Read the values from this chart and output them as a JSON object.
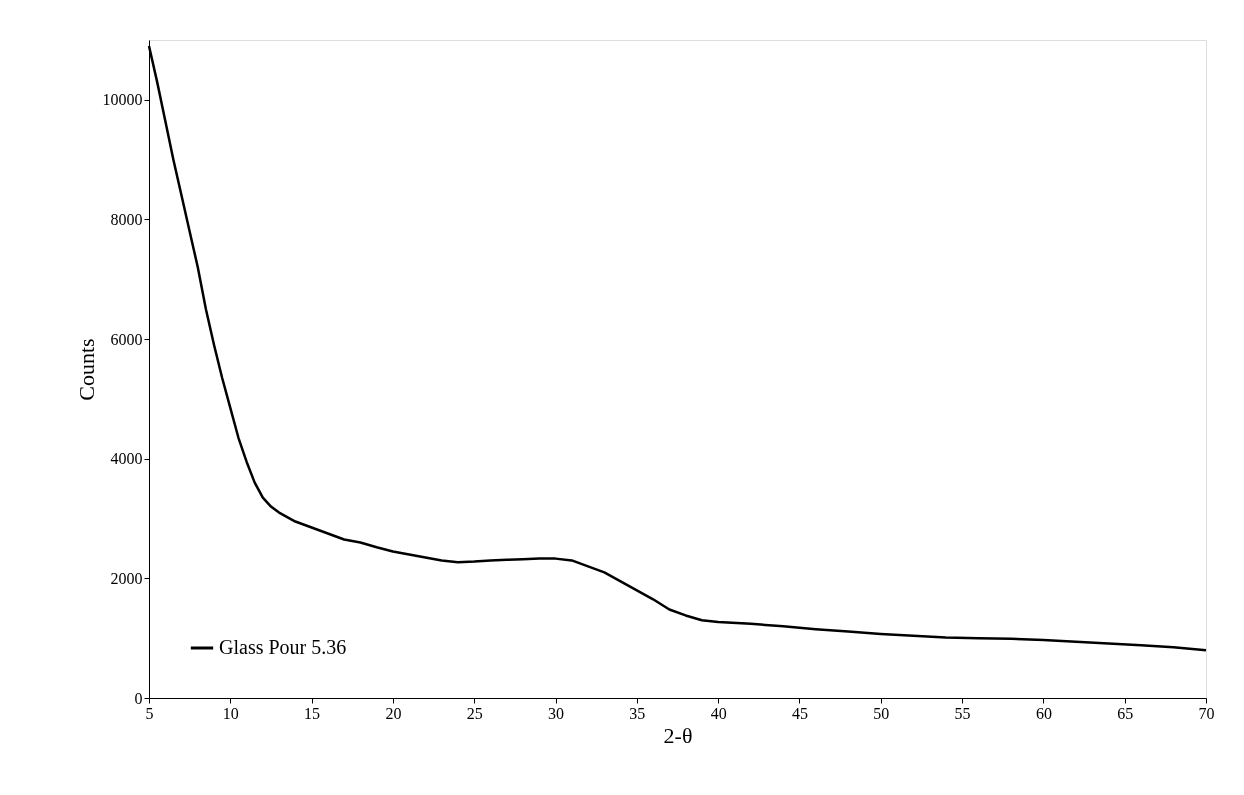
{
  "chart_data": {
    "type": "line",
    "xlabel": "2-θ",
    "ylabel": "Counts",
    "xlim": [
      5,
      70
    ],
    "xticks": [
      5,
      10,
      15,
      20,
      25,
      30,
      35,
      40,
      45,
      50,
      55,
      60,
      65,
      70
    ],
    "ylim": [
      0,
      11000
    ],
    "yticks": [
      0,
      2000,
      4000,
      6000,
      8000,
      10000
    ],
    "grid": false,
    "legend": "bottom left",
    "marker": "none",
    "line_style": "solid",
    "series": [
      {
        "name": "Glass Pour 5.36",
        "color": "#000000",
        "x": [
          5,
          5.5,
          6,
          6.5,
          7,
          7.5,
          8,
          8.5,
          9,
          9.5,
          10,
          10.5,
          11,
          11.5,
          12,
          12.5,
          13,
          14,
          15,
          16,
          17,
          18,
          19,
          20,
          21,
          22,
          23,
          24,
          25,
          26,
          27,
          28,
          29,
          30,
          31,
          32,
          33,
          34,
          35,
          36,
          37,
          38,
          39,
          40,
          42,
          44,
          46,
          48,
          50,
          52,
          54,
          56,
          58,
          60,
          62,
          64,
          66,
          68,
          70
        ],
        "values": [
          10900,
          10300,
          9650,
          9000,
          8400,
          7800,
          7200,
          6500,
          5900,
          5350,
          4850,
          4350,
          3950,
          3600,
          3350,
          3200,
          3100,
          2950,
          2850,
          2750,
          2650,
          2600,
          2520,
          2450,
          2400,
          2350,
          2300,
          2270,
          2280,
          2300,
          2310,
          2320,
          2330,
          2330,
          2300,
          2200,
          2100,
          1950,
          1800,
          1650,
          1480,
          1380,
          1300,
          1270,
          1240,
          1200,
          1150,
          1110,
          1070,
          1040,
          1010,
          1000,
          990,
          970,
          940,
          910,
          880,
          850,
          800
        ]
      }
    ]
  }
}
